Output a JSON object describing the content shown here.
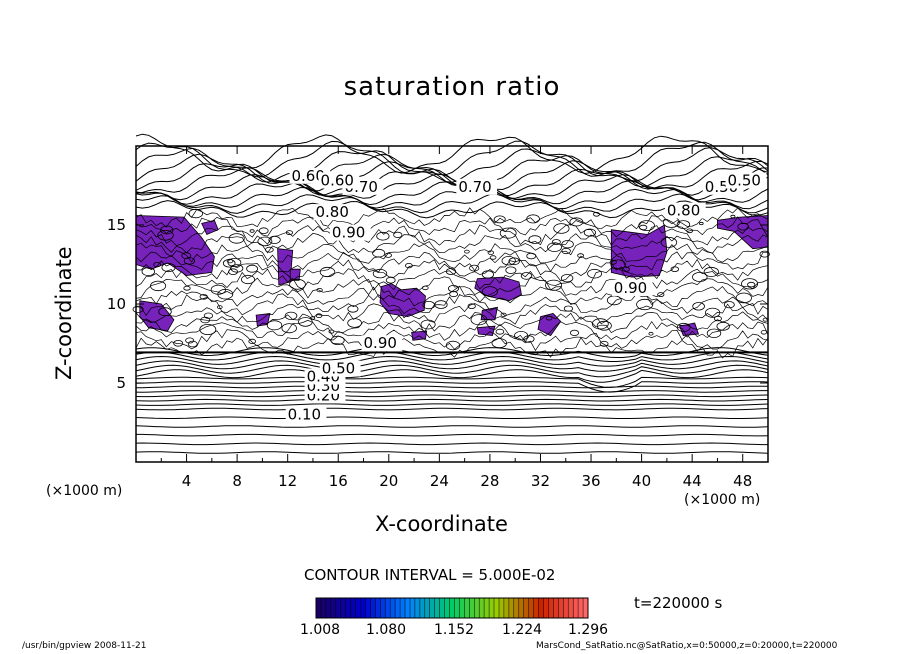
{
  "chart_data": {
    "type": "contour",
    "title": "saturation ratio",
    "xlabel": "X-coordinate",
    "ylabel": "Z-coordinate",
    "x_unit": "(×1000 m)",
    "y_unit": "(×1000 m)",
    "xlim": [
      0,
      50
    ],
    "ylim": [
      0,
      20
    ],
    "x_ticks": [
      4,
      8,
      12,
      16,
      20,
      24,
      28,
      32,
      36,
      40,
      44,
      48
    ],
    "y_ticks": [
      5,
      10,
      15
    ],
    "contour_interval_label": "CONTOUR INTERVAL = 5.000E-02",
    "time_label": "t=220000 s",
    "contour_labels": [
      "0.10",
      "0.20",
      "0.30",
      "0.40",
      "0.50",
      "0.90",
      "0.90",
      "0.90",
      "0.80",
      "0.80",
      "0.70",
      "0.70",
      "0.60",
      "0.60",
      "0.50",
      "0.50"
    ],
    "shaded_regions_above": 1.0,
    "colorbar": {
      "ticks": [
        "1.008",
        "1.080",
        "1.152",
        "1.224",
        "1.296"
      ],
      "colors": [
        "#1a0066",
        "#0000cc",
        "#0080ff",
        "#00cc66",
        "#99cc00",
        "#cc2200",
        "#ff6666"
      ]
    },
    "shade_color": "#7722bb"
  },
  "footer": {
    "left": "/usr/bin/gpview   2008-11-21",
    "right": "MarsCond_SatRatio.nc@SatRatio,x=0:50000,z=0:20000,t=220000"
  }
}
